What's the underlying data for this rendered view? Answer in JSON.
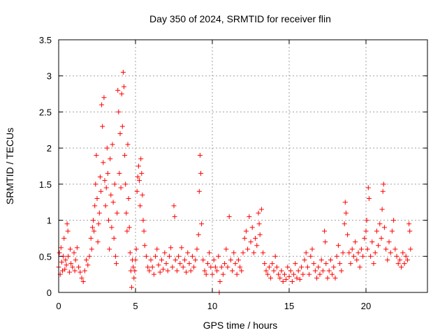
{
  "chart_data": {
    "type": "scatter",
    "title": "Day 350 of 2024, SRMTID for receiver flin",
    "xlabel": "GPS time / hours",
    "ylabel": "SRMTID / TECUs",
    "xlim": [
      0,
      24
    ],
    "ylim": [
      0,
      3.5
    ],
    "xticks": [
      0,
      5,
      10,
      15,
      20
    ],
    "xtick_labels": [
      "0",
      "5",
      "10",
      "15",
      "20"
    ],
    "yticks": [
      0,
      0.5,
      1,
      1.5,
      2,
      2.5,
      3,
      3.5
    ],
    "ytick_labels": [
      "0",
      "0.5",
      "1",
      "1.5",
      "2",
      "2.5",
      "3",
      "3.5"
    ],
    "grid": true,
    "marker": "+",
    "color": "#ff0000",
    "series": [
      {
        "name": "SRMTID",
        "points": [
          [
            0.0,
            0.35
          ],
          [
            0.05,
            0.55
          ],
          [
            0.1,
            0.25
          ],
          [
            0.15,
            0.62
          ],
          [
            0.2,
            0.42
          ],
          [
            0.25,
            0.3
          ],
          [
            0.3,
            0.5
          ],
          [
            0.35,
            0.75
          ],
          [
            0.4,
            0.32
          ],
          [
            0.45,
            0.45
          ],
          [
            0.5,
            0.38
          ],
          [
            0.55,
            0.95
          ],
          [
            0.6,
            0.85
          ],
          [
            0.62,
            0.5
          ],
          [
            0.7,
            0.28
          ],
          [
            0.75,
            0.6
          ],
          [
            0.8,
            0.4
          ],
          [
            0.9,
            0.35
          ],
          [
            1.0,
            0.55
          ],
          [
            1.05,
            0.3
          ],
          [
            1.1,
            0.45
          ],
          [
            1.2,
            0.62
          ],
          [
            1.3,
            0.35
          ],
          [
            1.4,
            0.28
          ],
          [
            1.5,
            0.2
          ],
          [
            1.6,
            0.15
          ],
          [
            1.7,
            0.3
          ],
          [
            1.8,
            0.45
          ],
          [
            1.9,
            0.38
          ],
          [
            2.0,
            0.5
          ],
          [
            2.1,
            0.75
          ],
          [
            2.15,
            0.6
          ],
          [
            2.2,
            0.9
          ],
          [
            2.25,
            1.0
          ],
          [
            2.3,
            0.85
          ],
          [
            2.35,
            1.2
          ],
          [
            2.4,
            1.5
          ],
          [
            2.45,
            1.9
          ],
          [
            2.5,
            1.3
          ],
          [
            2.55,
            0.7
          ],
          [
            2.6,
            0.95
          ],
          [
            2.65,
            1.1
          ],
          [
            2.7,
            1.6
          ],
          [
            2.75,
            1.4
          ],
          [
            2.8,
            2.6
          ],
          [
            2.85,
            2.3
          ],
          [
            2.9,
            1.8
          ],
          [
            2.95,
            2.7
          ],
          [
            3.0,
            1.55
          ],
          [
            3.05,
            1.2
          ],
          [
            3.1,
            1.45
          ],
          [
            3.15,
            2.0
          ],
          [
            3.2,
            1.65
          ],
          [
            3.25,
            1.0
          ],
          [
            3.3,
            0.6
          ],
          [
            3.35,
            1.85
          ],
          [
            3.4,
            1.35
          ],
          [
            3.45,
            0.9
          ],
          [
            3.5,
            2.05
          ],
          [
            3.55,
            1.25
          ],
          [
            3.6,
            0.75
          ],
          [
            3.65,
            1.5
          ],
          [
            3.7,
            0.5
          ],
          [
            3.75,
            0.4
          ],
          [
            3.8,
            1.1
          ],
          [
            3.85,
            2.8
          ],
          [
            3.9,
            2.5
          ],
          [
            3.95,
            1.65
          ],
          [
            4.0,
            2.2
          ],
          [
            4.05,
            1.45
          ],
          [
            4.1,
            2.75
          ],
          [
            4.15,
            2.3
          ],
          [
            4.2,
            3.05
          ],
          [
            4.25,
            2.85
          ],
          [
            4.3,
            1.9
          ],
          [
            4.35,
            1.5
          ],
          [
            4.4,
            1.1
          ],
          [
            4.45,
            0.85
          ],
          [
            4.5,
            2.05
          ],
          [
            4.55,
            1.3
          ],
          [
            4.6,
            0.9
          ],
          [
            4.65,
            0.55
          ],
          [
            4.7,
            0.3
          ],
          [
            4.75,
            0.07
          ],
          [
            4.8,
            0.45
          ],
          [
            4.85,
            0.35
          ],
          [
            4.9,
            0.2
          ],
          [
            4.95,
            0.3
          ],
          [
            5.0,
            0.45
          ],
          [
            5.05,
            0.6
          ],
          [
            5.1,
            1.4
          ],
          [
            5.15,
            1.6
          ],
          [
            5.2,
            1.75
          ],
          [
            5.25,
            1.55
          ],
          [
            5.3,
            1.2
          ],
          [
            5.35,
            1.85
          ],
          [
            5.4,
            1.65
          ],
          [
            5.45,
            1.35
          ],
          [
            5.5,
            1.0
          ],
          [
            5.55,
            0.85
          ],
          [
            5.6,
            0.65
          ],
          [
            5.7,
            0.5
          ],
          [
            5.8,
            0.35
          ],
          [
            5.9,
            0.3
          ],
          [
            6.0,
            0.45
          ],
          [
            6.1,
            0.35
          ],
          [
            6.2,
            0.25
          ],
          [
            6.3,
            0.5
          ],
          [
            6.4,
            0.6
          ],
          [
            6.5,
            0.38
          ],
          [
            6.6,
            0.28
          ],
          [
            6.7,
            0.45
          ],
          [
            6.8,
            0.32
          ],
          [
            6.9,
            0.55
          ],
          [
            7.0,
            0.4
          ],
          [
            7.1,
            0.3
          ],
          [
            7.2,
            0.5
          ],
          [
            7.3,
            0.62
          ],
          [
            7.4,
            0.35
          ],
          [
            7.5,
            1.2
          ],
          [
            7.55,
            1.05
          ],
          [
            7.6,
            0.45
          ],
          [
            7.7,
            0.3
          ],
          [
            7.8,
            0.5
          ],
          [
            7.9,
            0.4
          ],
          [
            8.0,
            0.62
          ],
          [
            8.1,
            0.35
          ],
          [
            8.2,
            0.45
          ],
          [
            8.3,
            0.28
          ],
          [
            8.4,
            0.55
          ],
          [
            8.5,
            0.4
          ],
          [
            8.6,
            0.3
          ],
          [
            8.7,
            0.5
          ],
          [
            8.8,
            0.35
          ],
          [
            8.9,
            0.45
          ],
          [
            9.0,
            0.6
          ],
          [
            9.1,
            0.8
          ],
          [
            9.15,
            1.4
          ],
          [
            9.2,
            1.9
          ],
          [
            9.25,
            1.65
          ],
          [
            9.3,
            0.95
          ],
          [
            9.4,
            0.45
          ],
          [
            9.5,
            0.3
          ],
          [
            9.6,
            0.25
          ],
          [
            9.7,
            0.4
          ],
          [
            9.8,
            0.55
          ],
          [
            9.9,
            0.35
          ],
          [
            10.0,
            0.25
          ],
          [
            10.1,
            0.45
          ],
          [
            10.2,
            0.35
          ],
          [
            10.3,
            0.3
          ],
          [
            10.4,
            0.5
          ],
          [
            10.45,
            0.0
          ],
          [
            10.5,
            0.15
          ],
          [
            10.6,
            0.35
          ],
          [
            10.7,
            0.25
          ],
          [
            10.8,
            0.4
          ],
          [
            10.9,
            0.6
          ],
          [
            11.0,
            0.35
          ],
          [
            11.1,
            1.05
          ],
          [
            11.2,
            0.45
          ],
          [
            11.3,
            0.3
          ],
          [
            11.4,
            0.55
          ],
          [
            11.5,
            0.4
          ],
          [
            11.6,
            0.25
          ],
          [
            11.7,
            0.45
          ],
          [
            11.8,
            0.35
          ],
          [
            11.9,
            0.3
          ],
          [
            12.0,
            0.55
          ],
          [
            12.1,
            0.75
          ],
          [
            12.2,
            0.85
          ],
          [
            12.3,
            0.6
          ],
          [
            12.4,
            1.05
          ],
          [
            12.5,
            0.7
          ],
          [
            12.6,
            0.9
          ],
          [
            12.7,
            0.55
          ],
          [
            12.8,
            0.75
          ],
          [
            12.9,
            0.65
          ],
          [
            13.0,
            1.1
          ],
          [
            13.05,
            0.95
          ],
          [
            13.1,
            0.8
          ],
          [
            13.2,
            1.15
          ],
          [
            13.3,
            0.55
          ],
          [
            13.4,
            0.4
          ],
          [
            13.5,
            0.3
          ],
          [
            13.6,
            0.25
          ],
          [
            13.7,
            0.35
          ],
          [
            13.8,
            0.2
          ],
          [
            13.9,
            0.4
          ],
          [
            14.0,
            0.3
          ],
          [
            14.1,
            0.5
          ],
          [
            14.2,
            0.35
          ],
          [
            14.3,
            0.25
          ],
          [
            14.4,
            0.2
          ],
          [
            14.5,
            0.3
          ],
          [
            14.6,
            0.15
          ],
          [
            14.7,
            0.25
          ],
          [
            14.8,
            0.18
          ],
          [
            14.9,
            0.35
          ],
          [
            15.0,
            0.22
          ],
          [
            15.1,
            0.3
          ],
          [
            15.2,
            0.15
          ],
          [
            15.3,
            0.25
          ],
          [
            15.4,
            0.4
          ],
          [
            15.5,
            0.2
          ],
          [
            15.6,
            0.3
          ],
          [
            15.7,
            0.18
          ],
          [
            15.8,
            0.35
          ],
          [
            15.9,
            0.25
          ],
          [
            16.0,
            0.45
          ],
          [
            16.1,
            0.55
          ],
          [
            16.2,
            0.35
          ],
          [
            16.3,
            0.25
          ],
          [
            16.4,
            0.5
          ],
          [
            16.5,
            0.6
          ],
          [
            16.6,
            0.4
          ],
          [
            16.7,
            0.3
          ],
          [
            16.8,
            0.2
          ],
          [
            16.9,
            0.35
          ],
          [
            17.0,
            0.25
          ],
          [
            17.1,
            0.45
          ],
          [
            17.2,
            0.3
          ],
          [
            17.3,
            0.85
          ],
          [
            17.35,
            0.7
          ],
          [
            17.4,
            0.4
          ],
          [
            17.5,
            0.2
          ],
          [
            17.6,
            0.3
          ],
          [
            17.7,
            0.45
          ],
          [
            17.8,
            0.25
          ],
          [
            17.9,
            0.35
          ],
          [
            18.0,
            0.2
          ],
          [
            18.1,
            0.5
          ],
          [
            18.2,
            0.65
          ],
          [
            18.3,
            0.4
          ],
          [
            18.4,
            0.3
          ],
          [
            18.5,
            0.55
          ],
          [
            18.6,
            0.95
          ],
          [
            18.65,
            1.25
          ],
          [
            18.7,
            1.1
          ],
          [
            18.8,
            0.8
          ],
          [
            18.9,
            0.55
          ],
          [
            19.0,
            0.4
          ],
          [
            19.1,
            0.6
          ],
          [
            19.2,
            0.5
          ],
          [
            19.3,
            0.7
          ],
          [
            19.4,
            0.45
          ],
          [
            19.5,
            0.55
          ],
          [
            19.6,
            0.35
          ],
          [
            19.7,
            0.6
          ],
          [
            19.8,
            0.5
          ],
          [
            19.9,
            0.75
          ],
          [
            20.0,
            0.85
          ],
          [
            20.05,
            1.0
          ],
          [
            20.1,
            0.6
          ],
          [
            20.15,
            1.45
          ],
          [
            20.2,
            1.3
          ],
          [
            20.3,
            0.5
          ],
          [
            20.4,
            0.7
          ],
          [
            20.5,
            0.4
          ],
          [
            20.6,
            0.55
          ],
          [
            20.7,
            0.85
          ],
          [
            20.8,
            0.65
          ],
          [
            20.9,
            0.95
          ],
          [
            21.0,
            0.75
          ],
          [
            21.05,
            1.15
          ],
          [
            21.1,
            1.4
          ],
          [
            21.15,
            1.5
          ],
          [
            21.2,
            0.9
          ],
          [
            21.3,
            0.6
          ],
          [
            21.4,
            0.45
          ],
          [
            21.5,
            0.7
          ],
          [
            21.6,
            0.55
          ],
          [
            21.7,
            0.85
          ],
          [
            21.8,
            1.0
          ],
          [
            21.9,
            0.6
          ],
          [
            22.0,
            0.5
          ],
          [
            22.1,
            0.4
          ],
          [
            22.2,
            0.45
          ],
          [
            22.3,
            0.35
          ],
          [
            22.4,
            0.55
          ],
          [
            22.5,
            0.4
          ],
          [
            22.6,
            0.5
          ],
          [
            22.7,
            0.45
          ],
          [
            22.8,
            0.95
          ],
          [
            22.85,
            0.85
          ],
          [
            22.9,
            0.6
          ]
        ]
      }
    ]
  }
}
